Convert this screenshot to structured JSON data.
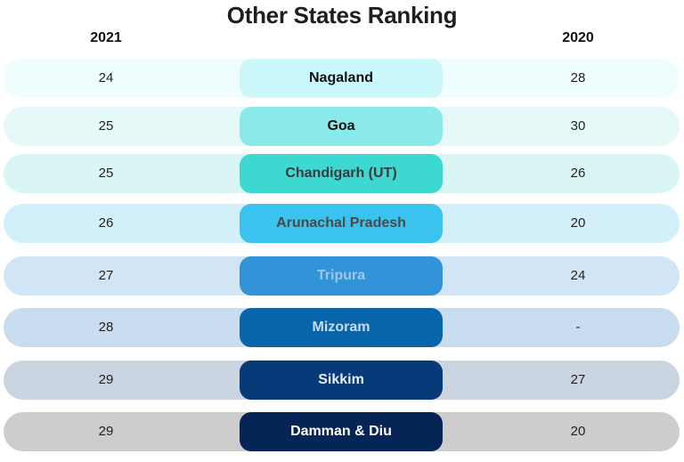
{
  "chart_data": {
    "type": "table",
    "title": "Other States Ranking",
    "columns": [
      "2021",
      "",
      "2020"
    ],
    "rows": [
      {
        "state": "Nagaland",
        "rank_2021": "24",
        "rank_2020": "28",
        "row_color": "#effdfe",
        "pill_color": "#ccf8fb",
        "text_color": "#111111"
      },
      {
        "state": "Goa",
        "rank_2021": "25",
        "rank_2020": "30",
        "row_color": "#e6f9f9",
        "pill_color": "#8ae9e9",
        "text_color": "#111111"
      },
      {
        "state": "Chandigarh (UT)",
        "rank_2021": "25",
        "rank_2020": "26",
        "row_color": "#d9f6f4",
        "pill_color": "#3ed8d3",
        "text_color": "#3a3a3a"
      },
      {
        "state": "Arunachal Pradesh",
        "rank_2021": "26",
        "rank_2020": "20",
        "row_color": "#d3f0fa",
        "pill_color": "#39c3ee",
        "text_color": "#4a4a4a"
      },
      {
        "state": "Tripura",
        "rank_2021": "27",
        "rank_2020": "24",
        "row_color": "#d1e5f5",
        "pill_color": "#3193d8",
        "text_color": "#9ec6e6"
      },
      {
        "state": "Mizoram",
        "rank_2021": "28",
        "rank_2020": "-",
        "row_color": "#c9dcf0",
        "pill_color": "#0a64aa",
        "text_color": "#c9dcf0"
      },
      {
        "state": "Sikkim",
        "rank_2021": "29",
        "rank_2020": "27",
        "row_color": "#cbd5e1",
        "pill_color": "#063a78",
        "text_color": "#e8eef6"
      },
      {
        "state": "Damman & Diu",
        "rank_2021": "29",
        "rank_2020": "20",
        "row_color": "#cdcdcd",
        "pill_color": "#052557",
        "text_color": "#ffffff"
      }
    ]
  }
}
